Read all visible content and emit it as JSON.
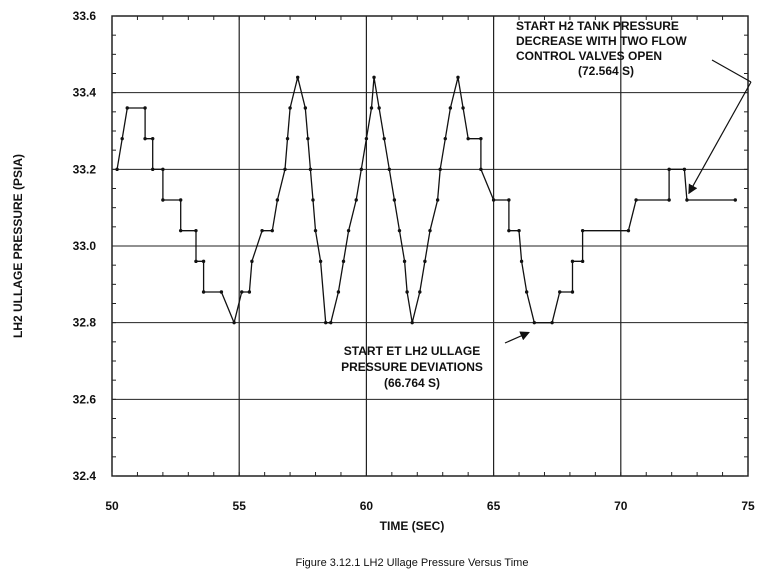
{
  "chart_data": {
    "type": "line",
    "title": "",
    "caption": "Figure 3.12.1  LH2 Ullage Pressure Versus Time",
    "xlabel": "TIME (SEC)",
    "ylabel": "LH2 ULLAGE PRESSURE (PSIA)",
    "xlim": [
      50,
      75
    ],
    "ylim": [
      32.4,
      33.6
    ],
    "xticks": [
      50,
      55,
      60,
      65,
      70,
      75
    ],
    "yticks": [
      32.4,
      32.6,
      32.8,
      33.0,
      33.2,
      33.4,
      33.6
    ],
    "xtick_labels": [
      "50",
      "55",
      "60",
      "65",
      "70",
      "75"
    ],
    "ytick_labels": [
      "32.4",
      "32.6",
      "32.8",
      "33.0",
      "33.2",
      "33.4",
      "33.6"
    ],
    "grid": true,
    "series": [
      {
        "name": "",
        "points": [
          [
            50.2,
            33.2
          ],
          [
            50.4,
            33.28
          ],
          [
            50.6,
            33.36
          ],
          [
            51.3,
            33.36
          ],
          [
            51.3,
            33.28
          ],
          [
            51.6,
            33.28
          ],
          [
            51.6,
            33.2
          ],
          [
            52.0,
            33.2
          ],
          [
            52.0,
            33.12
          ],
          [
            52.7,
            33.12
          ],
          [
            52.7,
            33.04
          ],
          [
            53.3,
            33.04
          ],
          [
            53.3,
            32.96
          ],
          [
            53.6,
            32.96
          ],
          [
            53.6,
            32.88
          ],
          [
            54.3,
            32.88
          ],
          [
            54.8,
            32.8
          ],
          [
            55.1,
            32.88
          ],
          [
            55.4,
            32.88
          ],
          [
            55.5,
            32.96
          ],
          [
            55.9,
            33.04
          ],
          [
            56.3,
            33.04
          ],
          [
            56.5,
            33.12
          ],
          [
            56.8,
            33.2
          ],
          [
            56.9,
            33.28
          ],
          [
            57.0,
            33.36
          ],
          [
            57.3,
            33.44
          ],
          [
            57.6,
            33.36
          ],
          [
            57.7,
            33.28
          ],
          [
            57.8,
            33.2
          ],
          [
            57.9,
            33.12
          ],
          [
            58.0,
            33.04
          ],
          [
            58.2,
            32.96
          ],
          [
            58.4,
            32.8
          ],
          [
            58.6,
            32.8
          ],
          [
            58.9,
            32.88
          ],
          [
            59.1,
            32.96
          ],
          [
            59.3,
            33.04
          ],
          [
            59.6,
            33.12
          ],
          [
            59.8,
            33.2
          ],
          [
            60.0,
            33.28
          ],
          [
            60.2,
            33.36
          ],
          [
            60.3,
            33.44
          ],
          [
            60.5,
            33.36
          ],
          [
            60.7,
            33.28
          ],
          [
            60.9,
            33.2
          ],
          [
            61.1,
            33.12
          ],
          [
            61.3,
            33.04
          ],
          [
            61.5,
            32.96
          ],
          [
            61.6,
            32.88
          ],
          [
            61.8,
            32.8
          ],
          [
            62.1,
            32.88
          ],
          [
            62.3,
            32.96
          ],
          [
            62.5,
            33.04
          ],
          [
            62.8,
            33.12
          ],
          [
            62.9,
            33.2
          ],
          [
            63.1,
            33.28
          ],
          [
            63.3,
            33.36
          ],
          [
            63.6,
            33.44
          ],
          [
            63.8,
            33.36
          ],
          [
            64.0,
            33.28
          ],
          [
            64.5,
            33.28
          ],
          [
            64.5,
            33.2
          ],
          [
            65.0,
            33.12
          ],
          [
            65.6,
            33.12
          ],
          [
            65.6,
            33.04
          ],
          [
            66.0,
            33.04
          ],
          [
            66.1,
            32.96
          ],
          [
            66.3,
            32.88
          ],
          [
            66.6,
            32.8
          ],
          [
            67.3,
            32.8
          ],
          [
            67.6,
            32.88
          ],
          [
            68.1,
            32.88
          ],
          [
            68.1,
            32.96
          ],
          [
            68.5,
            32.96
          ],
          [
            68.5,
            33.04
          ],
          [
            70.3,
            33.04
          ],
          [
            70.6,
            33.12
          ],
          [
            71.9,
            33.12
          ],
          [
            71.9,
            33.2
          ],
          [
            72.5,
            33.2
          ],
          [
            72.6,
            33.12
          ],
          [
            74.5,
            33.12
          ]
        ]
      }
    ],
    "annotations": [
      {
        "lines": [
          "START H2 TANK PRESSURE",
          "DECREASE WITH TWO FLOW",
          "CONTROL VALVES OPEN",
          "(72.564 S)"
        ],
        "points_to": [
          72.6,
          33.13
        ]
      },
      {
        "lines": [
          "START ET LH2 ULLAGE",
          "PRESSURE DEVIATIONS",
          "(66.764 S)"
        ],
        "points_to": [
          66.7,
          32.79
        ]
      }
    ]
  }
}
